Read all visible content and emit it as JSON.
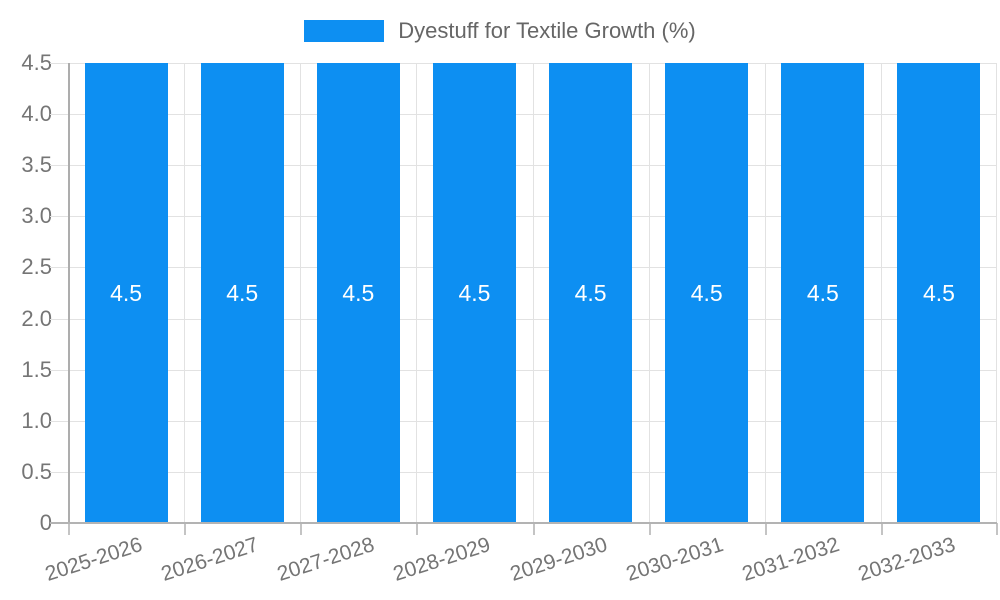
{
  "chart_data": {
    "type": "bar",
    "title": "",
    "categories": [
      "2025-2026",
      "2026-2027",
      "2027-2028",
      "2028-2029",
      "2029-2030",
      "2030-2031",
      "2031-2032",
      "2032-2033"
    ],
    "series": [
      {
        "name": "Dyestuff for Textile Growth (%)",
        "color": "#0d8ff2",
        "values": [
          4.5,
          4.5,
          4.5,
          4.5,
          4.5,
          4.5,
          4.5,
          4.5
        ]
      }
    ],
    "bar_value_labels": [
      "4.5",
      "4.5",
      "4.5",
      "4.5",
      "4.5",
      "4.5",
      "4.5",
      "4.5"
    ],
    "y_tick_labels": [
      "4.5",
      "4.0",
      "3.5",
      "3.0",
      "2.5",
      "2.0",
      "1.5",
      "1.0",
      "0.5",
      "0"
    ],
    "ylim": [
      0,
      4.5
    ],
    "grid": true,
    "legend_position": "top"
  },
  "colors": {
    "bar": "#0d8ff2",
    "bar_label_text": "#ffffff",
    "axis_text": "#757575",
    "legend_text": "#666666",
    "gridline": "#e2e2e2",
    "axis_line": "#b3b3b3",
    "background": "#ffffff"
  }
}
